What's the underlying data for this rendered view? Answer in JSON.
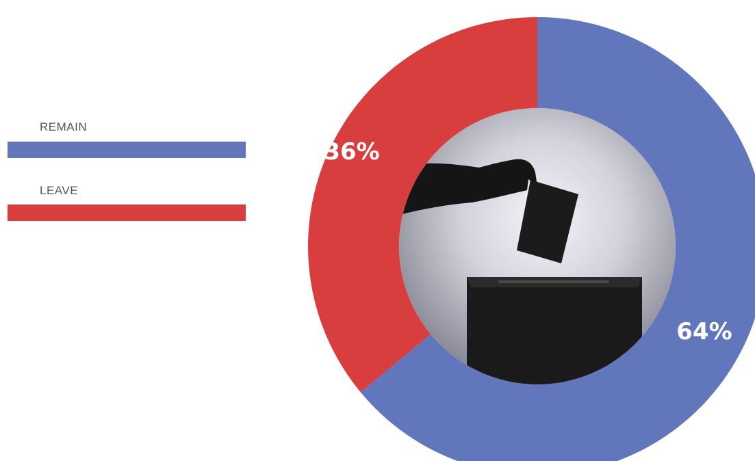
{
  "chart_data": {
    "type": "pie",
    "categories": [
      "REMAIN",
      "LEAVE"
    ],
    "values": [
      64,
      36
    ],
    "labels": [
      "64%",
      "36%"
    ],
    "colors": [
      "#6276bb",
      "#d83e3d"
    ],
    "legend": "left"
  },
  "legend": {
    "items": [
      {
        "label": "REMAIN",
        "color": "#6276bb"
      },
      {
        "label": "LEAVE",
        "color": "#d83e3d"
      }
    ]
  },
  "center_image": {
    "icon": "ballot-box-silhouette-icon"
  }
}
